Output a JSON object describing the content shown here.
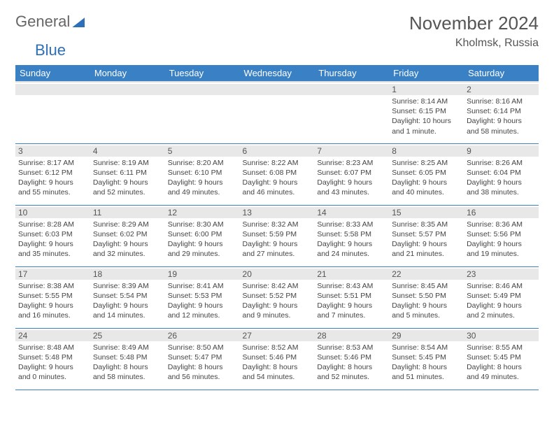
{
  "logo": {
    "part1": "General",
    "part2": "Blue"
  },
  "title": "November 2024",
  "location": "Kholmsk, Russia",
  "colors": {
    "header_bg": "#3a80c4",
    "header_fg": "#ffffff",
    "daynum_bg": "#e8e8e8",
    "border": "#3a80c4",
    "text": "#444444"
  },
  "typography": {
    "body_fontsize": 10.5,
    "title_fontsize": 26,
    "header_fontsize": 13
  },
  "dayHeaders": [
    "Sunday",
    "Monday",
    "Tuesday",
    "Wednesday",
    "Thursday",
    "Friday",
    "Saturday"
  ],
  "weeks": [
    [
      {
        "n": "",
        "sunrise": "",
        "sunset": "",
        "daylight": ""
      },
      {
        "n": "",
        "sunrise": "",
        "sunset": "",
        "daylight": ""
      },
      {
        "n": "",
        "sunrise": "",
        "sunset": "",
        "daylight": ""
      },
      {
        "n": "",
        "sunrise": "",
        "sunset": "",
        "daylight": ""
      },
      {
        "n": "",
        "sunrise": "",
        "sunset": "",
        "daylight": ""
      },
      {
        "n": "1",
        "sunrise": "Sunrise: 8:14 AM",
        "sunset": "Sunset: 6:15 PM",
        "daylight": "Daylight: 10 hours and 1 minute."
      },
      {
        "n": "2",
        "sunrise": "Sunrise: 8:16 AM",
        "sunset": "Sunset: 6:14 PM",
        "daylight": "Daylight: 9 hours and 58 minutes."
      }
    ],
    [
      {
        "n": "3",
        "sunrise": "Sunrise: 8:17 AM",
        "sunset": "Sunset: 6:12 PM",
        "daylight": "Daylight: 9 hours and 55 minutes."
      },
      {
        "n": "4",
        "sunrise": "Sunrise: 8:19 AM",
        "sunset": "Sunset: 6:11 PM",
        "daylight": "Daylight: 9 hours and 52 minutes."
      },
      {
        "n": "5",
        "sunrise": "Sunrise: 8:20 AM",
        "sunset": "Sunset: 6:10 PM",
        "daylight": "Daylight: 9 hours and 49 minutes."
      },
      {
        "n": "6",
        "sunrise": "Sunrise: 8:22 AM",
        "sunset": "Sunset: 6:08 PM",
        "daylight": "Daylight: 9 hours and 46 minutes."
      },
      {
        "n": "7",
        "sunrise": "Sunrise: 8:23 AM",
        "sunset": "Sunset: 6:07 PM",
        "daylight": "Daylight: 9 hours and 43 minutes."
      },
      {
        "n": "8",
        "sunrise": "Sunrise: 8:25 AM",
        "sunset": "Sunset: 6:05 PM",
        "daylight": "Daylight: 9 hours and 40 minutes."
      },
      {
        "n": "9",
        "sunrise": "Sunrise: 8:26 AM",
        "sunset": "Sunset: 6:04 PM",
        "daylight": "Daylight: 9 hours and 38 minutes."
      }
    ],
    [
      {
        "n": "10",
        "sunrise": "Sunrise: 8:28 AM",
        "sunset": "Sunset: 6:03 PM",
        "daylight": "Daylight: 9 hours and 35 minutes."
      },
      {
        "n": "11",
        "sunrise": "Sunrise: 8:29 AM",
        "sunset": "Sunset: 6:02 PM",
        "daylight": "Daylight: 9 hours and 32 minutes."
      },
      {
        "n": "12",
        "sunrise": "Sunrise: 8:30 AM",
        "sunset": "Sunset: 6:00 PM",
        "daylight": "Daylight: 9 hours and 29 minutes."
      },
      {
        "n": "13",
        "sunrise": "Sunrise: 8:32 AM",
        "sunset": "Sunset: 5:59 PM",
        "daylight": "Daylight: 9 hours and 27 minutes."
      },
      {
        "n": "14",
        "sunrise": "Sunrise: 8:33 AM",
        "sunset": "Sunset: 5:58 PM",
        "daylight": "Daylight: 9 hours and 24 minutes."
      },
      {
        "n": "15",
        "sunrise": "Sunrise: 8:35 AM",
        "sunset": "Sunset: 5:57 PM",
        "daylight": "Daylight: 9 hours and 21 minutes."
      },
      {
        "n": "16",
        "sunrise": "Sunrise: 8:36 AM",
        "sunset": "Sunset: 5:56 PM",
        "daylight": "Daylight: 9 hours and 19 minutes."
      }
    ],
    [
      {
        "n": "17",
        "sunrise": "Sunrise: 8:38 AM",
        "sunset": "Sunset: 5:55 PM",
        "daylight": "Daylight: 9 hours and 16 minutes."
      },
      {
        "n": "18",
        "sunrise": "Sunrise: 8:39 AM",
        "sunset": "Sunset: 5:54 PM",
        "daylight": "Daylight: 9 hours and 14 minutes."
      },
      {
        "n": "19",
        "sunrise": "Sunrise: 8:41 AM",
        "sunset": "Sunset: 5:53 PM",
        "daylight": "Daylight: 9 hours and 12 minutes."
      },
      {
        "n": "20",
        "sunrise": "Sunrise: 8:42 AM",
        "sunset": "Sunset: 5:52 PM",
        "daylight": "Daylight: 9 hours and 9 minutes."
      },
      {
        "n": "21",
        "sunrise": "Sunrise: 8:43 AM",
        "sunset": "Sunset: 5:51 PM",
        "daylight": "Daylight: 9 hours and 7 minutes."
      },
      {
        "n": "22",
        "sunrise": "Sunrise: 8:45 AM",
        "sunset": "Sunset: 5:50 PM",
        "daylight": "Daylight: 9 hours and 5 minutes."
      },
      {
        "n": "23",
        "sunrise": "Sunrise: 8:46 AM",
        "sunset": "Sunset: 5:49 PM",
        "daylight": "Daylight: 9 hours and 2 minutes."
      }
    ],
    [
      {
        "n": "24",
        "sunrise": "Sunrise: 8:48 AM",
        "sunset": "Sunset: 5:48 PM",
        "daylight": "Daylight: 9 hours and 0 minutes."
      },
      {
        "n": "25",
        "sunrise": "Sunrise: 8:49 AM",
        "sunset": "Sunset: 5:48 PM",
        "daylight": "Daylight: 8 hours and 58 minutes."
      },
      {
        "n": "26",
        "sunrise": "Sunrise: 8:50 AM",
        "sunset": "Sunset: 5:47 PM",
        "daylight": "Daylight: 8 hours and 56 minutes."
      },
      {
        "n": "27",
        "sunrise": "Sunrise: 8:52 AM",
        "sunset": "Sunset: 5:46 PM",
        "daylight": "Daylight: 8 hours and 54 minutes."
      },
      {
        "n": "28",
        "sunrise": "Sunrise: 8:53 AM",
        "sunset": "Sunset: 5:46 PM",
        "daylight": "Daylight: 8 hours and 52 minutes."
      },
      {
        "n": "29",
        "sunrise": "Sunrise: 8:54 AM",
        "sunset": "Sunset: 5:45 PM",
        "daylight": "Daylight: 8 hours and 51 minutes."
      },
      {
        "n": "30",
        "sunrise": "Sunrise: 8:55 AM",
        "sunset": "Sunset: 5:45 PM",
        "daylight": "Daylight: 8 hours and 49 minutes."
      }
    ]
  ]
}
